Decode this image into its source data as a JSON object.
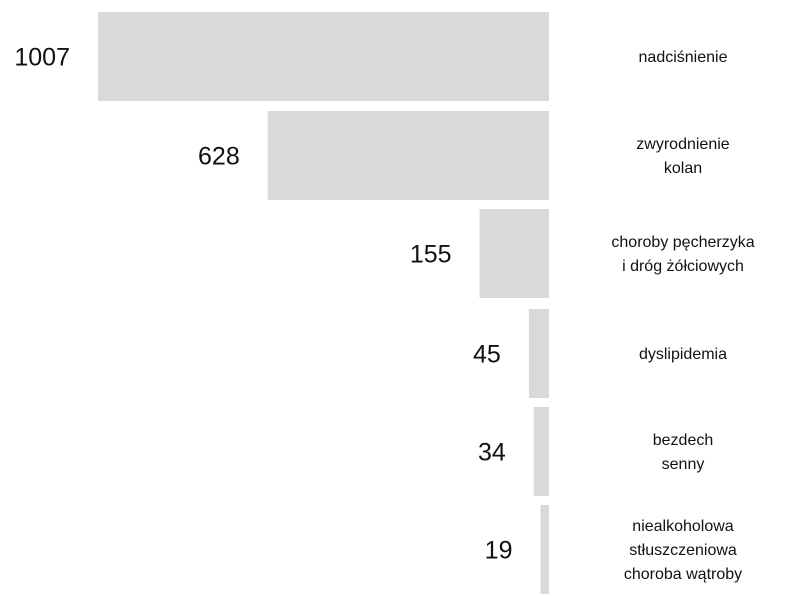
{
  "chart_data": {
    "type": "bar",
    "orientation": "horizontal",
    "title": "",
    "xlabel": "",
    "ylabel": "",
    "bar_color": "#d9d9d9",
    "value_label_color": "#111111",
    "category_label_color": "#111111",
    "grid": false,
    "legend": "none",
    "categories": [
      [
        "nadciśnienie"
      ],
      [
        "zwyrodnienie",
        "kolan"
      ],
      [
        "choroby pęcherzyka",
        "i dróg żółciowych"
      ],
      [
        "dyslipidemia"
      ],
      [
        "bezdech",
        "senny"
      ],
      [
        "niealkoholowa",
        "stłuszczeniowa",
        "choroba wątroby"
      ]
    ],
    "values": [
      1007,
      628,
      155,
      45,
      34,
      19
    ],
    "xlim": [
      0,
      1007
    ]
  }
}
